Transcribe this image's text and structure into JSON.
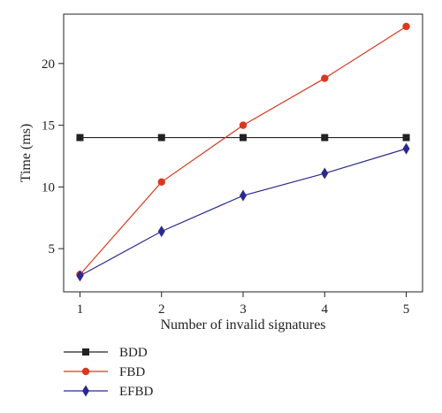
{
  "chart_data": {
    "type": "line",
    "title": "",
    "xlabel": "Number of invalid signatures",
    "ylabel": "Time (ms)",
    "x": [
      1,
      2,
      3,
      4,
      5
    ],
    "xticks": [
      "1",
      "2",
      "3",
      "4",
      "5"
    ],
    "xlim": [
      0.8,
      5.2
    ],
    "yticks": [
      "5",
      "10",
      "15",
      "20"
    ],
    "ylim": [
      1.5,
      24
    ],
    "grid": false,
    "legend_position": "bottom-left, below the plot",
    "series": [
      {
        "name": "BDD",
        "color": "#222222",
        "marker": "square",
        "values": [
          14.0,
          14.0,
          14.0,
          14.0,
          14.0
        ]
      },
      {
        "name": "FBD",
        "color": "#d9381e",
        "marker": "circle",
        "values": [
          2.9,
          10.4,
          15.0,
          18.8,
          23.0
        ]
      },
      {
        "name": "EFBD",
        "color": "#2b2a8c",
        "marker": "diamond",
        "values": [
          2.8,
          6.4,
          9.3,
          11.1,
          13.1
        ]
      }
    ]
  }
}
